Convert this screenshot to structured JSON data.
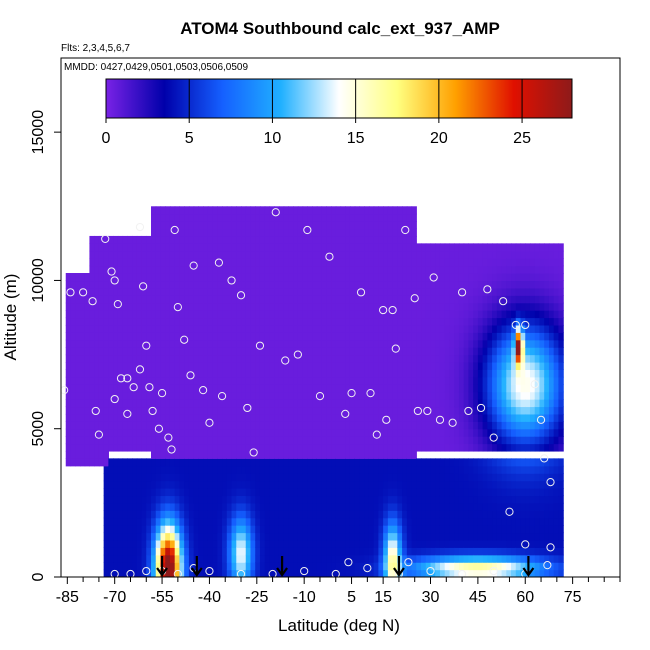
{
  "chart_data": {
    "type": "heatmap",
    "title": "ATOM4 Southbound calc_ext_937_AMP",
    "notes": [
      "Flts: 2,3,4,5,6,7",
      "MMDD: 0427,0429,0501,0503,0506,0509"
    ],
    "xlabel": "Latitude (deg N)",
    "ylabel": "Altitude (m)",
    "xlim": [
      -87,
      90
    ],
    "ylim": [
      0,
      17500
    ],
    "x_ticks": [
      -85,
      -70,
      -55,
      -40,
      -25,
      -10,
      5,
      15,
      30,
      45,
      60,
      75
    ],
    "x_minor_ticks": [
      -80,
      -75,
      -65,
      -60,
      -50,
      -45,
      -35,
      -30,
      -20,
      -15,
      -5,
      0,
      10,
      20,
      25,
      35,
      40,
      50,
      55,
      65,
      70,
      80,
      85,
      90
    ],
    "y_ticks": [
      0,
      5000,
      10000,
      15000
    ],
    "colorbar": {
      "range": [
        0,
        28
      ],
      "ticks": [
        0,
        5,
        10,
        15,
        20,
        25
      ],
      "colors": [
        "#7a22e6",
        "#0000aa",
        "#1560ff",
        "#20b0ff",
        "#ffffff",
        "#ffff80",
        "#ffa000",
        "#e01000",
        "#8e1a1a"
      ]
    },
    "sounding_arrows": [
      -55,
      -44,
      -17,
      20,
      61
    ],
    "data_regions": [
      {
        "lat": [
          -86,
          -72
        ],
        "alt": [
          3800,
          10200
        ],
        "value": 0.5
      },
      {
        "lat": [
          -78,
          -58
        ],
        "alt": [
          4200,
          11400
        ],
        "value": 0.5
      },
      {
        "lat": [
          -58,
          25
        ],
        "alt": [
          4000,
          12500
        ],
        "value": 0.5
      },
      {
        "lat": [
          25,
          72
        ],
        "alt": [
          4200,
          11200
        ],
        "value": 0.5
      },
      {
        "lat": [
          -74,
          72
        ],
        "alt": [
          0,
          4000
        ],
        "value": 4
      }
    ],
    "features": [
      {
        "lat": [
          -58,
          -48
        ],
        "alt": [
          0,
          3500
        ],
        "peak": 26,
        "peak_lat": -53,
        "peak_alt": 300
      },
      {
        "lat": [
          -35,
          -26
        ],
        "alt": [
          0,
          3000
        ],
        "peak": 10,
        "peak_lat": -30,
        "peak_alt": 800
      },
      {
        "lat": [
          15,
          22
        ],
        "alt": [
          0,
          3000
        ],
        "peak": 12,
        "peak_lat": 18,
        "peak_alt": 600
      },
      {
        "lat": [
          20,
          70
        ],
        "alt": [
          0,
          1000
        ],
        "peak": 13,
        "peak_lat": 45,
        "peak_alt": 300
      },
      {
        "lat": [
          40,
          70
        ],
        "alt": [
          4000,
          9000
        ],
        "peak": 14,
        "peak_lat": 60,
        "peak_alt": 6500
      },
      {
        "lat": [
          56,
          59
        ],
        "alt": [
          7000,
          8500
        ],
        "peak": 20,
        "peak_lat": 58,
        "peak_alt": 7800
      }
    ],
    "sample_points": [
      [
        -86,
        6300
      ],
      [
        -84,
        9600
      ],
      [
        -80,
        9600
      ],
      [
        -77,
        9300
      ],
      [
        -76,
        5600
      ],
      [
        -75,
        4800
      ],
      [
        -73,
        11400
      ],
      [
        -71,
        10300
      ],
      [
        -70,
        10000
      ],
      [
        -69,
        9200
      ],
      [
        -70,
        6000
      ],
      [
        -68,
        6700
      ],
      [
        -66,
        6700
      ],
      [
        -66,
        5500
      ],
      [
        -64,
        6400
      ],
      [
        -62,
        7000
      ],
      [
        -60,
        7800
      ],
      [
        -62,
        11800
      ],
      [
        -61,
        9800
      ],
      [
        -59,
        6400
      ],
      [
        -58,
        5600
      ],
      [
        -56,
        5000
      ],
      [
        -55,
        6200
      ],
      [
        -53,
        4700
      ],
      [
        -52,
        4300
      ],
      [
        -51,
        11700
      ],
      [
        -50,
        9100
      ],
      [
        -48,
        8000
      ],
      [
        -46,
        6800
      ],
      [
        -45,
        10500
      ],
      [
        -42,
        6300
      ],
      [
        -40,
        5200
      ],
      [
        -37,
        10600
      ],
      [
        -36,
        6100
      ],
      [
        -33,
        10000
      ],
      [
        -30,
        9500
      ],
      [
        -28,
        5700
      ],
      [
        -26,
        4200
      ],
      [
        -24,
        7800
      ],
      [
        -19,
        12300
      ],
      [
        -16,
        7300
      ],
      [
        -12,
        7500
      ],
      [
        -9,
        11700
      ],
      [
        -5,
        6100
      ],
      [
        -2,
        10800
      ],
      [
        3,
        5500
      ],
      [
        5,
        6200
      ],
      [
        8,
        9600
      ],
      [
        11,
        6200
      ],
      [
        13,
        4800
      ],
      [
        15,
        9000
      ],
      [
        16,
        5300
      ],
      [
        18,
        9000
      ],
      [
        19,
        7700
      ],
      [
        22,
        11700
      ],
      [
        25,
        9400
      ],
      [
        26,
        5600
      ],
      [
        29,
        5600
      ],
      [
        31,
        10100
      ],
      [
        33,
        5300
      ],
      [
        37,
        5200
      ],
      [
        40,
        9600
      ],
      [
        42,
        5600
      ],
      [
        46,
        5700
      ],
      [
        48,
        9700
      ],
      [
        50,
        4700
      ],
      [
        53,
        9300
      ],
      [
        57,
        8500
      ],
      [
        60,
        8500
      ],
      [
        63,
        6500
      ],
      [
        65,
        5300
      ],
      [
        66,
        4000
      ],
      [
        68,
        3200
      ],
      [
        68,
        1000
      ],
      [
        67,
        400
      ],
      [
        -70,
        100
      ],
      [
        -65,
        100
      ],
      [
        -60,
        200
      ],
      [
        -55,
        200
      ],
      [
        -50,
        100
      ],
      [
        -45,
        300
      ],
      [
        -40,
        200
      ],
      [
        -30,
        100
      ],
      [
        -20,
        100
      ],
      [
        -10,
        200
      ],
      [
        0,
        100
      ],
      [
        10,
        300
      ],
      [
        20,
        100
      ],
      [
        30,
        200
      ],
      [
        40,
        100
      ],
      [
        50,
        200
      ],
      [
        60,
        100
      ],
      [
        4,
        500
      ],
      [
        23,
        500
      ],
      [
        55,
        2200
      ],
      [
        60,
        1100
      ]
    ]
  }
}
